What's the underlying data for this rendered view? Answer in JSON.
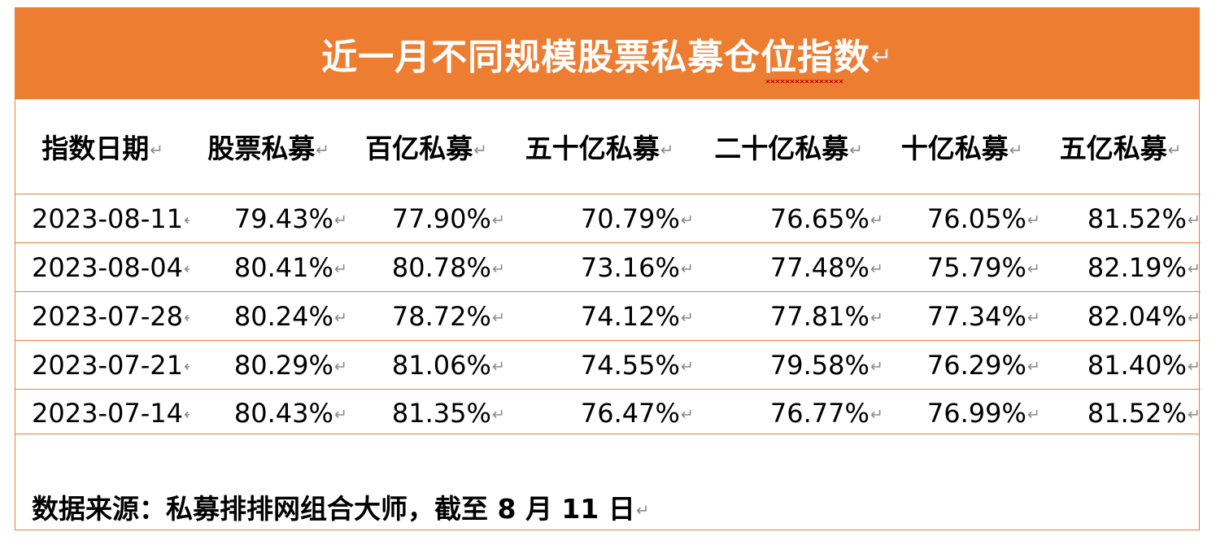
{
  "title": "近一月不同规模股票私募仓位指数",
  "paragraph_mark": "↵",
  "colors": {
    "accent": "#ed7d31",
    "title_text": "#ffffff",
    "body_text": "#000000",
    "mark": "#8a8a8a"
  },
  "table": {
    "headers": [
      "指数日期",
      "股票私募",
      "百亿私募",
      "五十亿私募",
      "二十亿私募",
      "十亿私募",
      "五亿私募"
    ],
    "rows": [
      [
        "2023-08-11",
        "79.43%",
        "77.90%",
        "70.79%",
        "76.65%",
        "76.05%",
        "81.52%"
      ],
      [
        "2023-08-04",
        "80.41%",
        "80.78%",
        "73.16%",
        "77.48%",
        "75.79%",
        "82.19%"
      ],
      [
        "2023-07-28",
        "80.24%",
        "78.72%",
        "74.12%",
        "77.81%",
        "77.34%",
        "82.04%"
      ],
      [
        "2023-07-21",
        "80.29%",
        "81.06%",
        "74.55%",
        "79.58%",
        "76.29%",
        "81.40%"
      ],
      [
        "2023-07-14",
        "80.43%",
        "81.35%",
        "76.47%",
        "76.77%",
        "76.99%",
        "81.52%"
      ]
    ]
  },
  "source_note": "数据来源：私募排排网组合大师，截至 8 月 11 日"
}
